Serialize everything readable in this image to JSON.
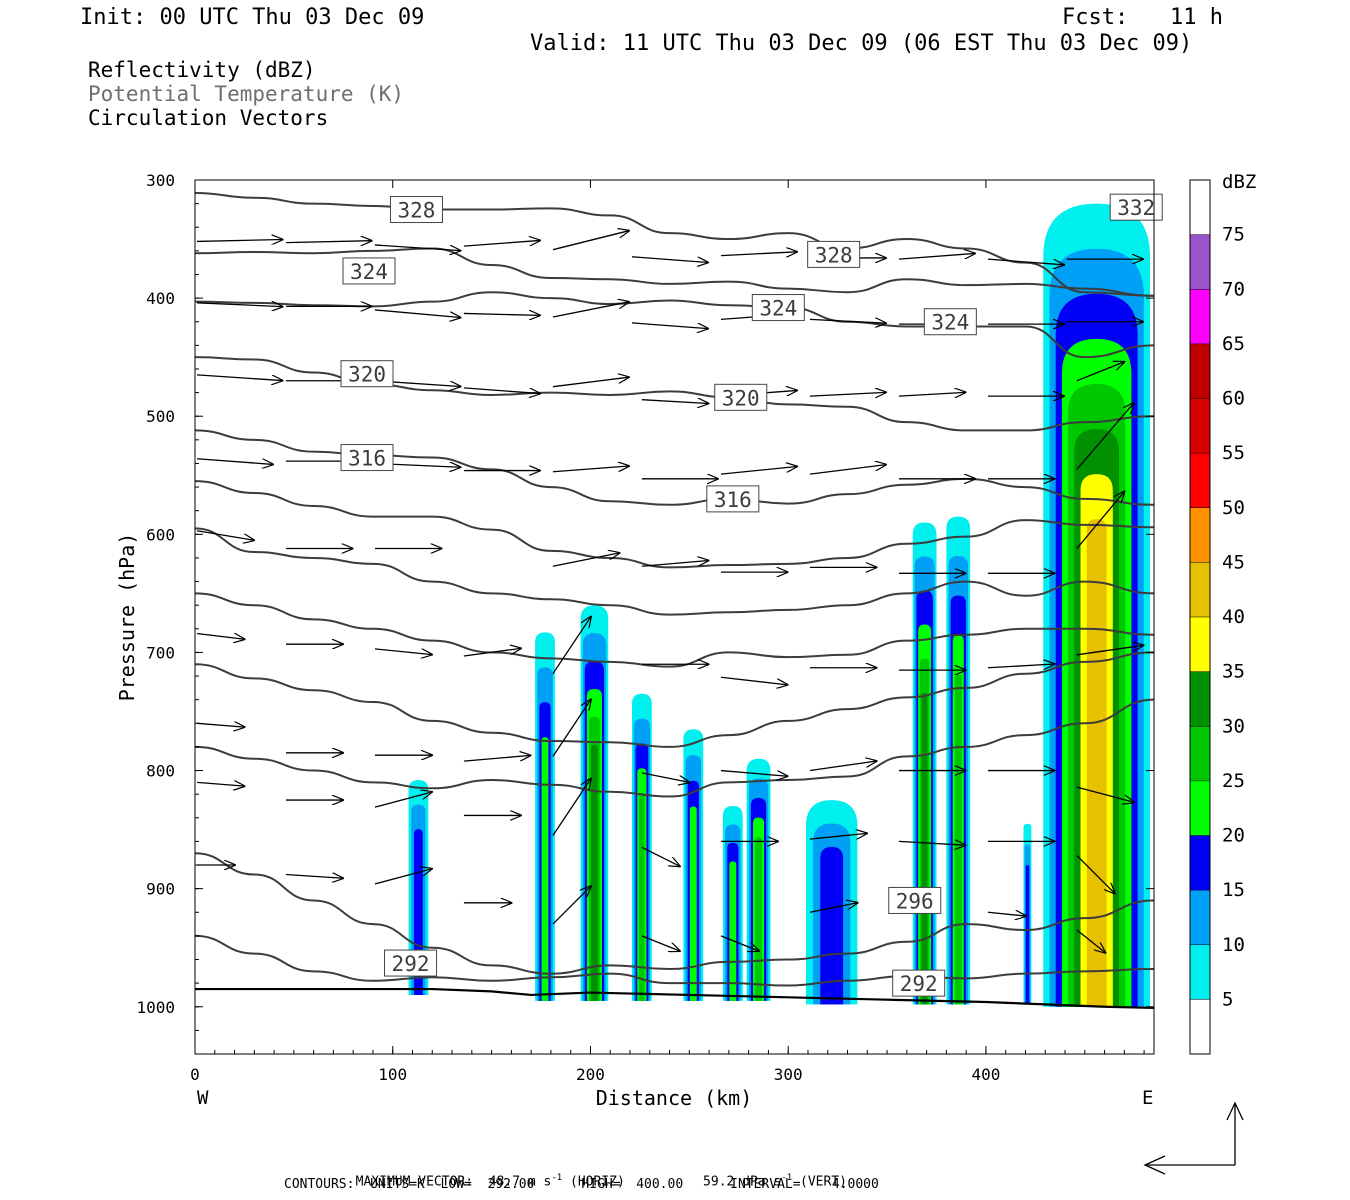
{
  "header": {
    "init": "Init: 00 UTC Thu 03 Dec 09",
    "fcst_label": "Fcst:",
    "fcst_value": "11 h",
    "valid": "Valid: 11 UTC Thu 03 Dec 09 (06 EST Thu 03 Dec 09)"
  },
  "fields": {
    "reflectivity": "Reflectivity (dBZ)",
    "theta": "Potential Temperature (K)",
    "vectors": "Circulation Vectors"
  },
  "footer": {
    "max_vector": "MAXIMUM VECTOR:  48.7 m s",
    "max_vector_sup1": "-1",
    "max_vector_horiz": " (HORIZ)          59.2 dPa s",
    "max_vector_sup2": "-1",
    "max_vector_vert": " (VERT)",
    "contours": "CONTOURS:  UNITS=K  LOW=  292.00      HIGH=  400.00      INTERVAL=    4.0000"
  },
  "colors": {
    "theta_line": "#3c3c3c",
    "vector": "#000000"
  },
  "chart_data": {
    "type": "heatmap",
    "title": "",
    "xlabel": "Distance (km)",
    "ylabel": "Pressure (hPa)",
    "xlim": [
      0,
      485
    ],
    "ylim": [
      1040,
      300
    ],
    "x_ticks": [
      0,
      100,
      200,
      300,
      400
    ],
    "y_ticks": [
      300,
      400,
      500,
      600,
      700,
      800,
      900,
      1000
    ],
    "x_end_labels": {
      "left": "W",
      "right": "E"
    },
    "colorbar": {
      "label": "dBZ",
      "levels": [
        5,
        10,
        15,
        20,
        25,
        30,
        35,
        40,
        45,
        50,
        55,
        60,
        65,
        70,
        75
      ],
      "colors": [
        "#ffffff",
        "#00efef",
        "#00a0f6",
        "#0000f6",
        "#00ff00",
        "#00c800",
        "#009000",
        "#ffff00",
        "#e7c000",
        "#ff9000",
        "#ff0000",
        "#d60000",
        "#c00000",
        "#ff00ff",
        "#9955c9",
        "#ffffff"
      ]
    },
    "theta_contour_labels": [
      {
        "value": "328",
        "x": 112,
        "p": 325
      },
      {
        "value": "324",
        "x": 88,
        "p": 377
      },
      {
        "value": "320",
        "x": 87,
        "p": 464
      },
      {
        "value": "316",
        "x": 87,
        "p": 535
      },
      {
        "value": "292",
        "x": 109,
        "p": 963
      },
      {
        "value": "328",
        "x": 323,
        "p": 363
      },
      {
        "value": "324",
        "x": 295,
        "p": 408
      },
      {
        "value": "320",
        "x": 276,
        "p": 484
      },
      {
        "value": "316",
        "x": 272,
        "p": 570
      },
      {
        "value": "324",
        "x": 382,
        "p": 420
      },
      {
        "value": "332",
        "x": 476,
        "p": 323
      },
      {
        "value": "296",
        "x": 364,
        "p": 910
      },
      {
        "value": "292",
        "x": 366,
        "p": 980
      }
    ],
    "theta_isentropes": [
      {
        "p": [
          311,
          315,
          320,
          322,
          325,
          325,
          324,
          330,
          345,
          350,
          345,
          358,
          350,
          358,
          370,
          395,
          398
        ]
      },
      {
        "p": [
          362,
          361,
          362,
          360,
          358,
          372,
          383,
          384,
          388,
          386,
          392,
          395,
          384,
          389,
          388,
          392,
          398
        ]
      },
      {
        "p": [
          403,
          404,
          406,
          407,
          403,
          395,
          400,
          405,
          402,
          406,
          408,
          420,
          424,
          424,
          424,
          450,
          440
        ]
      },
      {
        "p": [
          450,
          452,
          463,
          473,
          478,
          482,
          480,
          482,
          479,
          484,
          490,
          492,
          505,
          512,
          512,
          505,
          500
        ]
      },
      {
        "p": [
          512,
          520,
          530,
          533,
          535,
          545,
          560,
          572,
          575,
          570,
          574,
          566,
          558,
          553,
          560,
          570,
          575
        ]
      },
      {
        "p": [
          555,
          565,
          576,
          585,
          585,
          596,
          614,
          620,
          628,
          626,
          625,
          620,
          608,
          602,
          588,
          592,
          594
        ]
      },
      {
        "p": [
          595,
          615,
          620,
          625,
          640,
          650,
          655,
          660,
          668,
          666,
          664,
          660,
          650,
          640,
          652,
          640,
          650
        ]
      },
      {
        "p": [
          650,
          660,
          672,
          680,
          690,
          700,
          705,
          708,
          712,
          700,
          704,
          702,
          690,
          685,
          680,
          680,
          685
        ]
      },
      {
        "p": [
          710,
          722,
          732,
          742,
          758,
          768,
          775,
          776,
          780,
          770,
          758,
          748,
          738,
          730,
          718,
          708,
          700
        ]
      },
      {
        "p": [
          780,
          790,
          800,
          810,
          815,
          808,
          812,
          818,
          822,
          810,
          808,
          805,
          788,
          780,
          770,
          760,
          740
        ]
      },
      {
        "p": [
          870,
          888,
          910,
          930,
          950,
          965,
          972,
          965,
          968,
          962,
          960,
          955,
          945,
          930,
          935,
          925,
          910
        ]
      },
      {
        "p": [
          940,
          955,
          970,
          978,
          975,
          978,
          975,
          972,
          980,
          980,
          982,
          978,
          974,
          976,
          972,
          970,
          968
        ]
      }
    ],
    "theta_isentrope_x": [
      0,
      30,
      60,
      90,
      120,
      150,
      180,
      210,
      240,
      270,
      300,
      330,
      360,
      390,
      420,
      450,
      485
    ],
    "terrain_p": [
      985,
      985,
      987,
      990,
      988,
      990,
      992,
      994,
      996,
      998,
      1000,
      1001
    ],
    "terrain_x": [
      0,
      120,
      150,
      170,
      200,
      250,
      300,
      350,
      400,
      430,
      460,
      485
    ],
    "reflectivity_cells": [
      {
        "x": 113,
        "top_p": 808,
        "bottom_p": 990,
        "width_km": 10,
        "max_dbz": 15
      },
      {
        "x": 177,
        "top_p": 683,
        "bottom_p": 995,
        "width_km": 10,
        "max_dbz": 20
      },
      {
        "x": 202,
        "top_p": 660,
        "bottom_p": 995,
        "width_km": 14,
        "max_dbz": 30
      },
      {
        "x": 226,
        "top_p": 735,
        "bottom_p": 995,
        "width_km": 10,
        "max_dbz": 25
      },
      {
        "x": 252,
        "top_p": 765,
        "bottom_p": 995,
        "width_km": 10,
        "max_dbz": 20
      },
      {
        "x": 272,
        "top_p": 830,
        "bottom_p": 995,
        "width_km": 10,
        "max_dbz": 20
      },
      {
        "x": 285,
        "top_p": 790,
        "bottom_p": 995,
        "width_km": 12,
        "max_dbz": 25
      },
      {
        "x": 322,
        "top_p": 825,
        "bottom_p": 998,
        "width_km": 26,
        "max_dbz": 15
      },
      {
        "x": 369,
        "top_p": 590,
        "bottom_p": 998,
        "width_km": 12,
        "max_dbz": 30
      },
      {
        "x": 386,
        "top_p": 585,
        "bottom_p": 998,
        "width_km": 12,
        "max_dbz": 25
      },
      {
        "x": 421,
        "top_p": 845,
        "bottom_p": 998,
        "width_km": 4,
        "max_dbz": 15
      },
      {
        "x": 456,
        "top_p": 320,
        "bottom_p": 1000,
        "width_km": 54,
        "max_dbz": 40
      }
    ],
    "vectors": [
      {
        "x": 0,
        "p": 352,
        "u": 45,
        "w": 1
      },
      {
        "x": 45,
        "p": 353,
        "u": 45,
        "w": 1
      },
      {
        "x": 90,
        "p": 355,
        "u": 45,
        "w": -3
      },
      {
        "x": 135,
        "p": 356,
        "u": 40,
        "w": 3
      },
      {
        "x": 180,
        "p": 359,
        "u": 40,
        "w": 10
      },
      {
        "x": 220,
        "p": 365,
        "u": 40,
        "w": -3
      },
      {
        "x": 265,
        "p": 364,
        "u": 40,
        "w": 2
      },
      {
        "x": 310,
        "p": 366,
        "u": 40,
        "w": 0
      },
      {
        "x": 355,
        "p": 367,
        "u": 40,
        "w": 3
      },
      {
        "x": 400,
        "p": 367,
        "u": 40,
        "w": -3
      },
      {
        "x": 440,
        "p": 367,
        "u": 40,
        "w": 0
      },
      {
        "x": 0,
        "p": 404,
        "u": 45,
        "w": -2
      },
      {
        "x": 45,
        "p": 407,
        "u": 45,
        "w": 0
      },
      {
        "x": 90,
        "p": 410,
        "u": 45,
        "w": -4
      },
      {
        "x": 135,
        "p": 413,
        "u": 40,
        "w": -1
      },
      {
        "x": 180,
        "p": 416,
        "u": 40,
        "w": 8
      },
      {
        "x": 220,
        "p": 421,
        "u": 40,
        "w": -3
      },
      {
        "x": 265,
        "p": 418,
        "u": 40,
        "w": 3
      },
      {
        "x": 310,
        "p": 418,
        "u": 40,
        "w": -2
      },
      {
        "x": 355,
        "p": 422,
        "u": 40,
        "w": 0
      },
      {
        "x": 400,
        "p": 422,
        "u": 40,
        "w": 0
      },
      {
        "x": 440,
        "p": 420,
        "u": 40,
        "w": 0
      },
      {
        "x": 0,
        "p": 465,
        "u": 45,
        "w": -3
      },
      {
        "x": 45,
        "p": 470,
        "u": 45,
        "w": 0
      },
      {
        "x": 90,
        "p": 470,
        "u": 45,
        "w": -3
      },
      {
        "x": 135,
        "p": 476,
        "u": 40,
        "w": -3
      },
      {
        "x": 180,
        "p": 475,
        "u": 40,
        "w": 5
      },
      {
        "x": 225,
        "p": 486,
        "u": 35,
        "w": -2
      },
      {
        "x": 265,
        "p": 483,
        "u": 40,
        "w": 3
      },
      {
        "x": 310,
        "p": 483,
        "u": 40,
        "w": 2
      },
      {
        "x": 355,
        "p": 483,
        "u": 35,
        "w": 2
      },
      {
        "x": 400,
        "p": 483,
        "u": 40,
        "w": 0
      },
      {
        "x": 445,
        "p": 470,
        "u": 25,
        "w": 10
      },
      {
        "x": 0,
        "p": 536,
        "u": 40,
        "w": -3
      },
      {
        "x": 45,
        "p": 538,
        "u": 45,
        "w": 0
      },
      {
        "x": 90,
        "p": 540,
        "u": 45,
        "w": -2
      },
      {
        "x": 135,
        "p": 546,
        "u": 40,
        "w": 0
      },
      {
        "x": 180,
        "p": 547,
        "u": 40,
        "w": 3
      },
      {
        "x": 225,
        "p": 553,
        "u": 40,
        "w": 0
      },
      {
        "x": 265,
        "p": 549,
        "u": 40,
        "w": 4
      },
      {
        "x": 310,
        "p": 549,
        "u": 40,
        "w": 5
      },
      {
        "x": 355,
        "p": 553,
        "u": 40,
        "w": 0
      },
      {
        "x": 400,
        "p": 553,
        "u": 35,
        "w": 0
      },
      {
        "x": 445,
        "p": 545,
        "u": 30,
        "w": 35
      },
      {
        "x": 0,
        "p": 597,
        "u": 30,
        "w": -5
      },
      {
        "x": 45,
        "p": 612,
        "u": 35,
        "w": 0
      },
      {
        "x": 90,
        "p": 612,
        "u": 35,
        "w": 0
      },
      {
        "x": 180,
        "p": 627,
        "u": 35,
        "w": 7
      },
      {
        "x": 225,
        "p": 627,
        "u": 35,
        "w": 3
      },
      {
        "x": 265,
        "p": 632,
        "u": 35,
        "w": 0
      },
      {
        "x": 310,
        "p": 628,
        "u": 35,
        "w": 0
      },
      {
        "x": 355,
        "p": 633,
        "u": 35,
        "w": 0
      },
      {
        "x": 400,
        "p": 633,
        "u": 35,
        "w": 0
      },
      {
        "x": 445,
        "p": 612,
        "u": 25,
        "w": 30
      },
      {
        "x": 0,
        "p": 684,
        "u": 25,
        "w": -3
      },
      {
        "x": 45,
        "p": 693,
        "u": 30,
        "w": 0
      },
      {
        "x": 90,
        "p": 697,
        "u": 30,
        "w": -3
      },
      {
        "x": 135,
        "p": 703,
        "u": 30,
        "w": 4
      },
      {
        "x": 180,
        "p": 718,
        "u": 20,
        "w": 30
      },
      {
        "x": 225,
        "p": 710,
        "u": 35,
        "w": 0
      },
      {
        "x": 265,
        "p": 721,
        "u": 35,
        "w": -4
      },
      {
        "x": 310,
        "p": 713,
        "u": 35,
        "w": 0
      },
      {
        "x": 355,
        "p": 715,
        "u": 35,
        "w": 0
      },
      {
        "x": 400,
        "p": 713,
        "u": 35,
        "w": 2
      },
      {
        "x": 445,
        "p": 702,
        "u": 35,
        "w": 5
      },
      {
        "x": 0,
        "p": 760,
        "u": 25,
        "w": -2
      },
      {
        "x": 45,
        "p": 785,
        "u": 30,
        "w": 0
      },
      {
        "x": 90,
        "p": 787,
        "u": 30,
        "w": 0
      },
      {
        "x": 135,
        "p": 792,
        "u": 35,
        "w": 3
      },
      {
        "x": 180,
        "p": 788,
        "u": 20,
        "w": 30
      },
      {
        "x": 225,
        "p": 802,
        "u": 25,
        "w": -5
      },
      {
        "x": 265,
        "p": 800,
        "u": 35,
        "w": -3
      },
      {
        "x": 310,
        "p": 800,
        "u": 35,
        "w": 5
      },
      {
        "x": 355,
        "p": 800,
        "u": 35,
        "w": 0
      },
      {
        "x": 400,
        "p": 800,
        "u": 35,
        "w": 0
      },
      {
        "x": 445,
        "p": 814,
        "u": 30,
        "w": -8
      },
      {
        "x": 0,
        "p": 810,
        "u": 25,
        "w": -2
      },
      {
        "x": 45,
        "p": 825,
        "u": 30,
        "w": 0
      },
      {
        "x": 90,
        "p": 831,
        "u": 30,
        "w": 8
      },
      {
        "x": 135,
        "p": 838,
        "u": 30,
        "w": 0
      },
      {
        "x": 180,
        "p": 855,
        "u": 20,
        "w": 30
      },
      {
        "x": 225,
        "p": 865,
        "u": 20,
        "w": -10
      },
      {
        "x": 265,
        "p": 860,
        "u": 30,
        "w": 0
      },
      {
        "x": 310,
        "p": 858,
        "u": 30,
        "w": 3
      },
      {
        "x": 355,
        "p": 860,
        "u": 35,
        "w": -2
      },
      {
        "x": 400,
        "p": 860,
        "u": 35,
        "w": 0
      },
      {
        "x": 445,
        "p": 872,
        "u": 20,
        "w": -20
      },
      {
        "x": 0,
        "p": 880,
        "u": 20,
        "w": 0
      },
      {
        "x": 45,
        "p": 888,
        "u": 30,
        "w": -2
      },
      {
        "x": 90,
        "p": 896,
        "u": 30,
        "w": 8
      },
      {
        "x": 135,
        "p": 912,
        "u": 25,
        "w": 0
      },
      {
        "x": 180,
        "p": 930,
        "u": 20,
        "w": 20
      },
      {
        "x": 225,
        "p": 940,
        "u": 20,
        "w": -8
      },
      {
        "x": 265,
        "p": 940,
        "u": 20,
        "w": -8
      },
      {
        "x": 310,
        "p": 920,
        "u": 25,
        "w": 5
      },
      {
        "x": 355,
        "p": 915,
        "u": 20,
        "w": 5
      },
      {
        "x": 400,
        "p": 920,
        "u": 20,
        "w": -2
      },
      {
        "x": 445,
        "p": 935,
        "u": 15,
        "w": -12
      }
    ]
  }
}
